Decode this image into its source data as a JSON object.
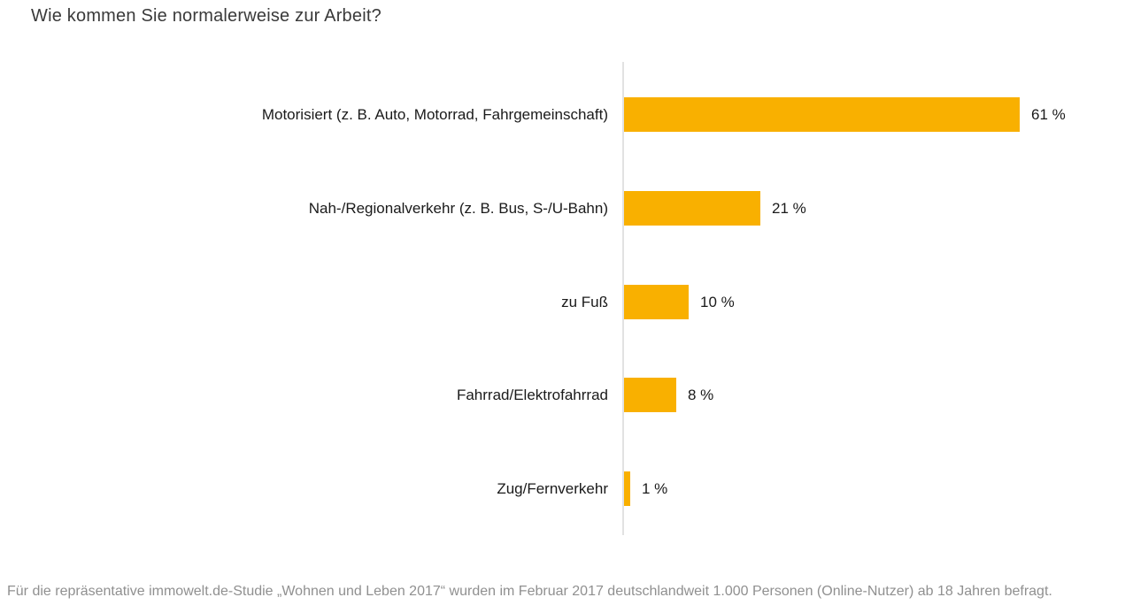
{
  "title": "Wie kommen Sie normalerweise zur Arbeit?",
  "footer": "Für die repräsentative immowelt.de-Studie „Wohnen und Leben 2017“ wurden im Februar 2017 deutschlandweit 1.000 Personen (Online-Nutzer) ab 18 Jahren befragt.",
  "colors": {
    "bar": "#F9B000",
    "axis": "#E2E2E2",
    "title_text": "#3A3A3A",
    "label_text": "#1A1A1A",
    "footer_text": "#909090"
  },
  "chart_data": {
    "type": "bar",
    "orientation": "horizontal",
    "title": "Wie kommen Sie normalerweise zur Arbeit?",
    "categories": [
      "Motorisiert (z. B. Auto, Motorrad, Fahrgemeinschaft)",
      "Nah-/Regionalverkehr (z. B. Bus, S-/U-Bahn)",
      "zu Fuß",
      "Fahrrad/Elektrofahrrad",
      "Zug/Fernverkehr"
    ],
    "values": [
      61,
      21,
      10,
      8,
      1
    ],
    "value_labels": [
      "61 %",
      "21 %",
      "10 %",
      "8 %",
      "1 %"
    ],
    "unit": "%",
    "xlabel": "",
    "ylabel": "",
    "xlim": [
      0,
      78
    ],
    "grid": false,
    "legend": false,
    "bar_color": "#F9B000",
    "value_label_position": "right-of-bar"
  }
}
